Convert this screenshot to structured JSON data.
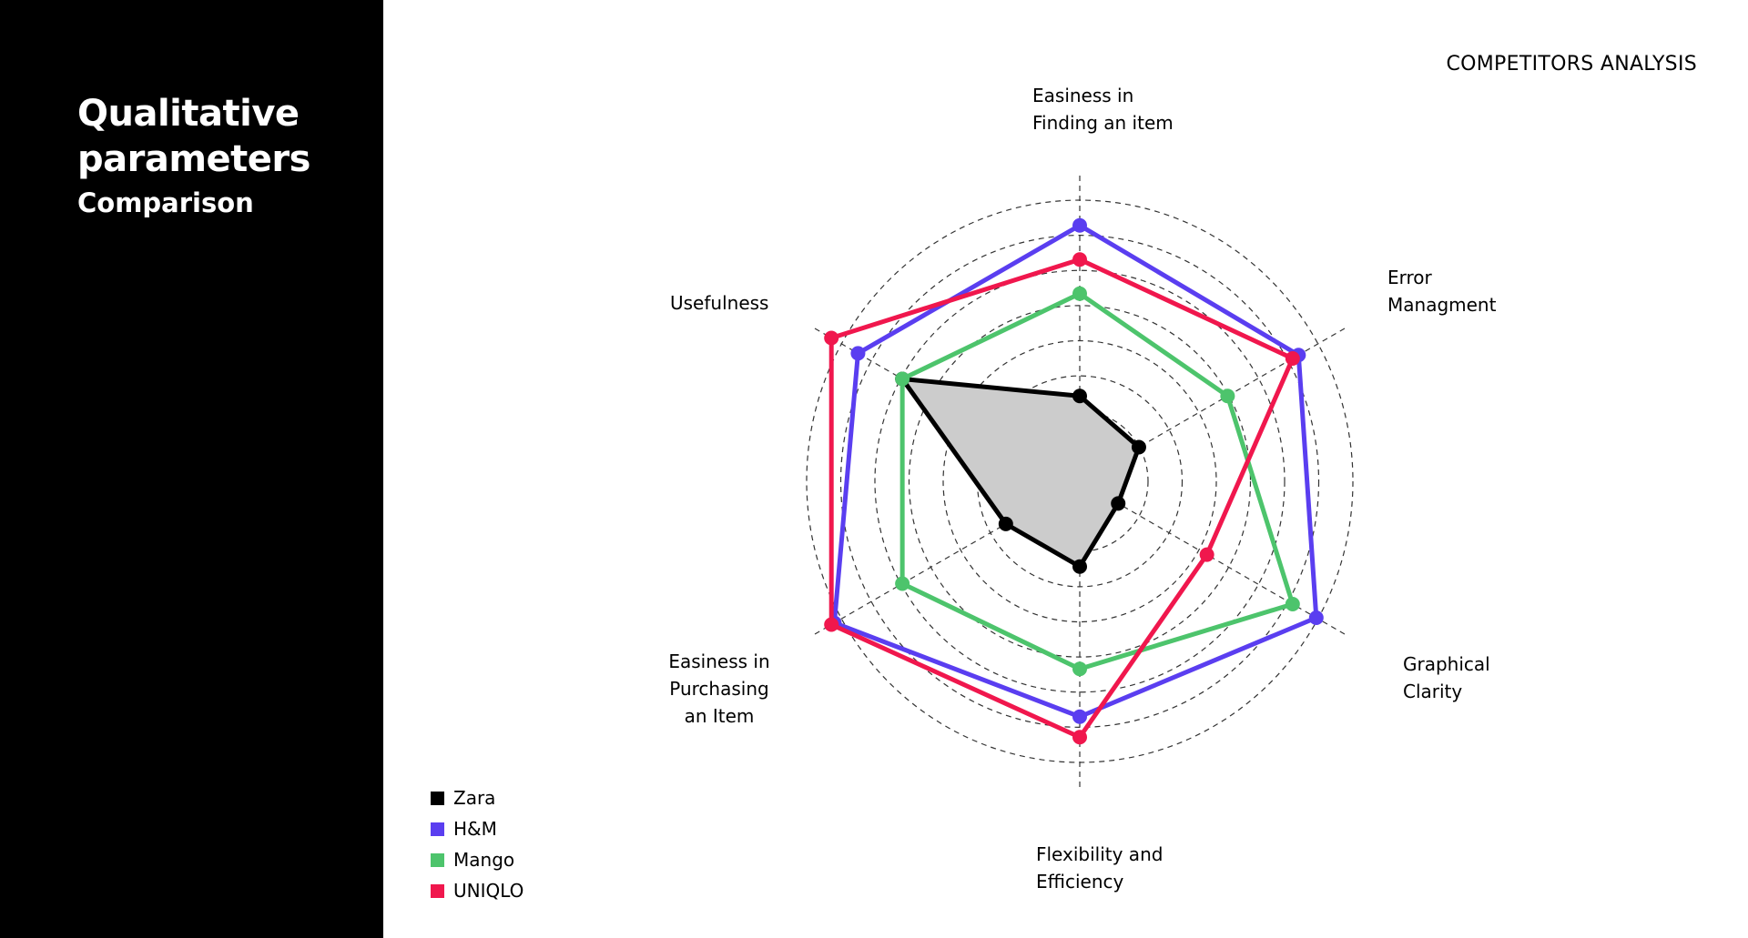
{
  "sidebar": {
    "title": "Qualitative parameters",
    "subtitle": "Comparison"
  },
  "header": {
    "label": "COMPETITORS ANALYSIS"
  },
  "chart_data": {
    "type": "radar",
    "title": "",
    "axes": [
      "Easiness in\nFinding an item",
      "Error\nManagment",
      "Graphical\nClarity",
      "Flexibility and\nEfficiency",
      "Easiness in\nPurchasing\nan Item",
      "Usefulness"
    ],
    "rings": 8,
    "range": [
      0,
      8
    ],
    "grid": true,
    "legend_position": "bottom-left",
    "series": [
      {
        "name": "Zara",
        "color": "#000000",
        "fill": "#cccccc",
        "values": [
          2.5,
          2,
          1.3,
          2.5,
          2.5,
          6
        ]
      },
      {
        "name": "H&M",
        "color": "#5a3ef0",
        "fill": "none",
        "values": [
          7.5,
          7.4,
          8,
          6.9,
          8.3,
          7.5
        ]
      },
      {
        "name": "Mango",
        "color": "#4dc46c",
        "fill": "none",
        "values": [
          5.5,
          5,
          7.2,
          5.5,
          6,
          6
        ]
      },
      {
        "name": "UNIQLO",
        "color": "#f0174d",
        "fill": "none",
        "values": [
          6.5,
          7.2,
          4.3,
          7.5,
          8.4,
          8.4
        ]
      }
    ]
  }
}
